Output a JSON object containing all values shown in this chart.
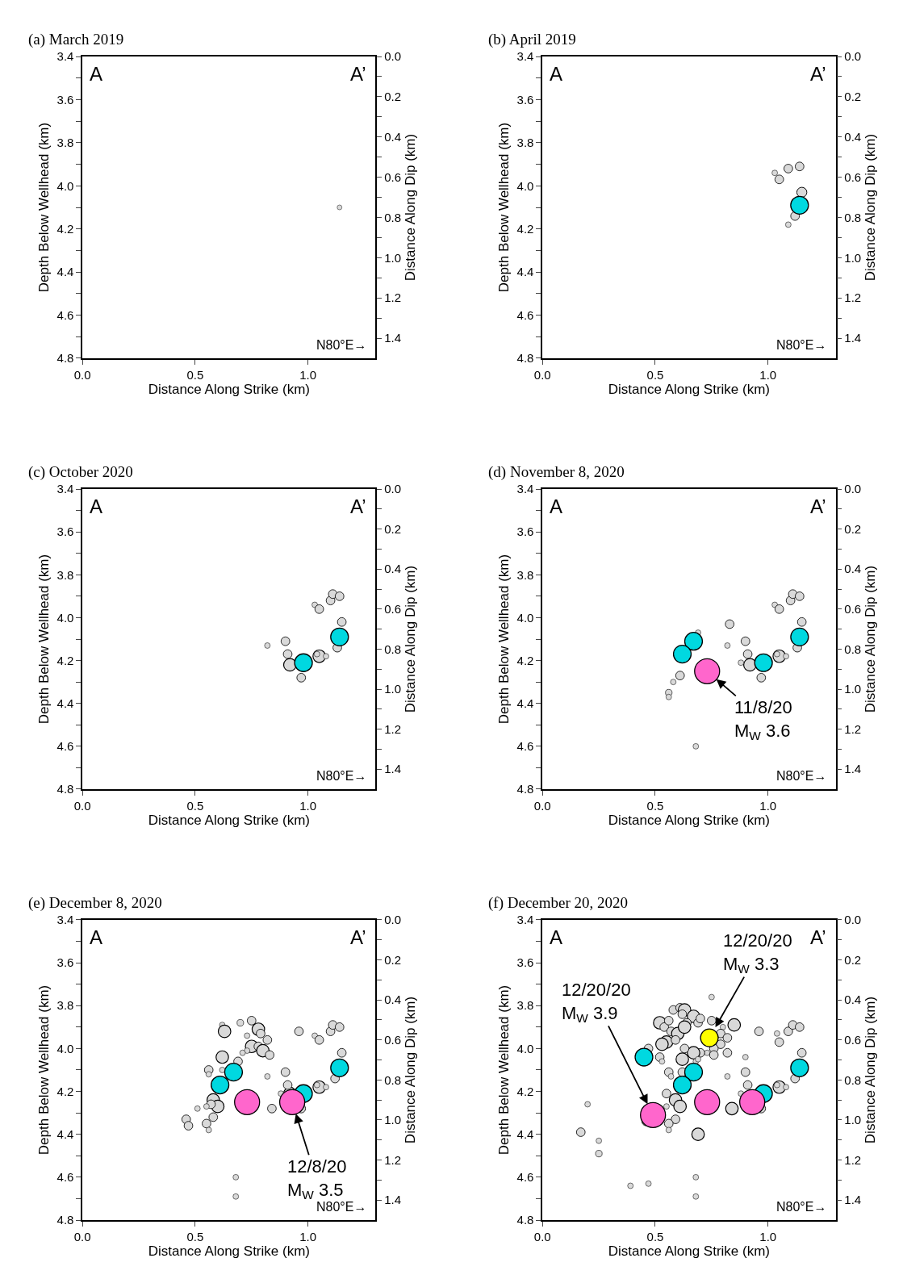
{
  "chart_data": [
    {
      "type": "bubble",
      "title": "(a) March 2019",
      "xlabel": "Distance Along Strike (km)",
      "ylabel": "Depth Below Wellhead (km)",
      "y2label": "Distance Along Dip (km)",
      "marker": "circle",
      "xlim": [
        0,
        1.3
      ],
      "xticks": [
        {
          "value": 0,
          "label": "0.0"
        },
        {
          "value": 0.5,
          "label": "0.5"
        },
        {
          "value": 1,
          "label": "1.0"
        }
      ],
      "ylim": [
        4.8,
        3.4
      ],
      "yticks": [
        {
          "value": 3.4,
          "label": "3.4"
        },
        {
          "value": 3.5,
          "label": null
        },
        {
          "value": 3.6,
          "label": "3.6"
        },
        {
          "value": 3.7,
          "label": null
        },
        {
          "value": 3.8,
          "label": "3.8"
        },
        {
          "value": 3.9,
          "label": null
        },
        {
          "value": 4.0,
          "label": "4.0"
        },
        {
          "value": 4.1,
          "label": null
        },
        {
          "value": 4.2,
          "label": "4.2"
        },
        {
          "value": 4.3,
          "label": null
        },
        {
          "value": 4.4,
          "label": "4.4"
        },
        {
          "value": 4.5,
          "label": null
        },
        {
          "value": 4.6,
          "label": "4.6"
        },
        {
          "value": 4.7,
          "label": null
        },
        {
          "value": 4.8,
          "label": "4.8"
        }
      ],
      "y2lim": [
        1.5,
        0
      ],
      "y2ticks": [
        {
          "value": 0,
          "label": "0.0"
        },
        {
          "value": 0.1,
          "label": null
        },
        {
          "value": 0.2,
          "label": "0.2"
        },
        {
          "value": 0.3,
          "label": null
        },
        {
          "value": 0.4,
          "label": "0.4"
        },
        {
          "value": 0.5,
          "label": null
        },
        {
          "value": 0.6,
          "label": "0.6"
        },
        {
          "value": 0.7,
          "label": null
        },
        {
          "value": 0.8,
          "label": "0.8"
        },
        {
          "value": 0.9,
          "label": null
        },
        {
          "value": 1.0,
          "label": "1.0"
        },
        {
          "value": 1.1,
          "label": null
        },
        {
          "value": 1.2,
          "label": "1.2"
        },
        {
          "value": 1.3,
          "label": null
        },
        {
          "value": 1.4,
          "label": "1.4"
        }
      ],
      "annotations": [
        "A",
        "A’",
        "N80°E→"
      ],
      "series": [
        {
          "color": "#d9d9d9",
          "x": [
            1.14
          ],
          "values": [
            4.1
          ],
          "sizes": [
            1
          ]
        }
      ]
    },
    {
      "type": "bubble",
      "title": "(b) April 2019",
      "xlabel": "Distance Along Strike (km)",
      "ylabel": "Depth Below Wellhead (km)",
      "y2label": "Distance Along Dip (km)",
      "marker": "circle",
      "xlim": [
        0,
        1.3
      ],
      "xticks": [
        {
          "value": 0,
          "label": "0.0"
        },
        {
          "value": 0.5,
          "label": "0.5"
        },
        {
          "value": 1,
          "label": "1.0"
        }
      ],
      "ylim": [
        4.8,
        3.4
      ],
      "yticks": [
        {
          "value": 3.4,
          "label": "3.4"
        },
        {
          "value": 3.5,
          "label": null
        },
        {
          "value": 3.6,
          "label": "3.6"
        },
        {
          "value": 3.7,
          "label": null
        },
        {
          "value": 3.8,
          "label": "3.8"
        },
        {
          "value": 3.9,
          "label": null
        },
        {
          "value": 4.0,
          "label": "4.0"
        },
        {
          "value": 4.1,
          "label": null
        },
        {
          "value": 4.2,
          "label": "4.2"
        },
        {
          "value": 4.3,
          "label": null
        },
        {
          "value": 4.4,
          "label": "4.4"
        },
        {
          "value": 4.5,
          "label": null
        },
        {
          "value": 4.6,
          "label": "4.6"
        },
        {
          "value": 4.7,
          "label": null
        },
        {
          "value": 4.8,
          "label": "4.8"
        }
      ],
      "y2lim": [
        1.5,
        0
      ],
      "y2ticks": [
        {
          "value": 0,
          "label": "0.0"
        },
        {
          "value": 0.1,
          "label": null
        },
        {
          "value": 0.2,
          "label": "0.2"
        },
        {
          "value": 0.3,
          "label": null
        },
        {
          "value": 0.4,
          "label": "0.4"
        },
        {
          "value": 0.5,
          "label": null
        },
        {
          "value": 0.6,
          "label": "0.6"
        },
        {
          "value": 0.7,
          "label": null
        },
        {
          "value": 0.8,
          "label": "0.8"
        },
        {
          "value": 0.9,
          "label": null
        },
        {
          "value": 1.0,
          "label": "1.0"
        },
        {
          "value": 1.1,
          "label": null
        },
        {
          "value": 1.2,
          "label": "1.2"
        },
        {
          "value": 1.3,
          "label": null
        },
        {
          "value": 1.4,
          "label": "1.4"
        }
      ],
      "annotations": [
        "A",
        "A’",
        "N80°E→"
      ],
      "series": [
        {
          "color": "#d9d9d9",
          "x": [
            1.03,
            1.05,
            1.09,
            1.14,
            1.15,
            1.12,
            1.09
          ],
          "values": [
            3.94,
            3.97,
            3.92,
            3.91,
            4.03,
            4.14,
            4.18
          ],
          "sizes": [
            0.1,
            0.24,
            0.24,
            0.24,
            0.32,
            0.24,
            0.1
          ]
        },
        {
          "color": "#00d8e0",
          "x": [
            1.14
          ],
          "values": [
            4.09
          ],
          "sizes": [
            1
          ]
        }
      ]
    },
    {
      "type": "bubble",
      "title": "(c) October 2020",
      "xlabel": "Distance Along Strike (km)",
      "ylabel": "Depth Below Wellhead (km)",
      "y2label": "Distance Along Dip (km)",
      "marker": "circle",
      "xlim": [
        0,
        1.3
      ],
      "xticks": [
        {
          "value": 0,
          "label": "0.0"
        },
        {
          "value": 0.5,
          "label": "0.5"
        },
        {
          "value": 1,
          "label": "1.0"
        }
      ],
      "ylim": [
        4.8,
        3.4
      ],
      "yticks": [
        {
          "value": 3.4,
          "label": "3.4"
        },
        {
          "value": 3.5,
          "label": null
        },
        {
          "value": 3.6,
          "label": "3.6"
        },
        {
          "value": 3.7,
          "label": null
        },
        {
          "value": 3.8,
          "label": "3.8"
        },
        {
          "value": 3.9,
          "label": null
        },
        {
          "value": 4.0,
          "label": "4.0"
        },
        {
          "value": 4.1,
          "label": null
        },
        {
          "value": 4.2,
          "label": "4.2"
        },
        {
          "value": 4.3,
          "label": null
        },
        {
          "value": 4.4,
          "label": "4.4"
        },
        {
          "value": 4.5,
          "label": null
        },
        {
          "value": 4.6,
          "label": "4.6"
        },
        {
          "value": 4.7,
          "label": null
        },
        {
          "value": 4.8,
          "label": "4.8"
        }
      ],
      "y2lim": [
        1.5,
        0
      ],
      "y2ticks": [
        {
          "value": 0,
          "label": "0.0"
        },
        {
          "value": 0.1,
          "label": null
        },
        {
          "value": 0.2,
          "label": "0.2"
        },
        {
          "value": 0.3,
          "label": null
        },
        {
          "value": 0.4,
          "label": "0.4"
        },
        {
          "value": 0.5,
          "label": null
        },
        {
          "value": 0.6,
          "label": "0.6"
        },
        {
          "value": 0.7,
          "label": null
        },
        {
          "value": 0.8,
          "label": "0.8"
        },
        {
          "value": 0.9,
          "label": null
        },
        {
          "value": 1.0,
          "label": "1.0"
        },
        {
          "value": 1.1,
          "label": null
        },
        {
          "value": 1.2,
          "label": "1.2"
        },
        {
          "value": 1.3,
          "label": null
        },
        {
          "value": 1.4,
          "label": "1.4"
        }
      ],
      "annotations": [
        "A",
        "A’",
        "N80°E→"
      ],
      "series": [
        {
          "color": "#d9d9d9",
          "x": [
            1.03,
            1.05,
            1.1,
            1.11,
            1.14,
            1.15,
            1.13,
            1.05,
            1.04,
            1.08,
            0.97,
            0.92,
            0.91,
            0.9,
            0.82
          ],
          "values": [
            3.94,
            3.96,
            3.92,
            3.89,
            3.9,
            4.02,
            4.14,
            4.18,
            4.17,
            4.18,
            4.28,
            4.22,
            4.17,
            4.11,
            4.13
          ],
          "sizes": [
            0.1,
            0.24,
            0.24,
            0.24,
            0.24,
            0.24,
            0.24,
            0.5,
            0.1,
            0.1,
            0.24,
            0.5,
            0.24,
            0.24,
            0.1
          ]
        },
        {
          "color": "#00d8e0",
          "x": [
            1.14,
            0.98
          ],
          "values": [
            4.09,
            4.21
          ],
          "sizes": [
            1,
            1
          ]
        }
      ]
    },
    {
      "type": "bubble",
      "title": "(d) November 8, 2020",
      "xlabel": "Distance Along Strike (km)",
      "ylabel": "Depth Below Wellhead (km)",
      "y2label": "Distance Along Dip (km)",
      "marker": "circle",
      "xlim": [
        0,
        1.3
      ],
      "xticks": [
        {
          "value": 0,
          "label": "0.0"
        },
        {
          "value": 0.5,
          "label": "0.5"
        },
        {
          "value": 1,
          "label": "1.0"
        }
      ],
      "ylim": [
        4.8,
        3.4
      ],
      "yticks": [
        {
          "value": 3.4,
          "label": "3.4"
        },
        {
          "value": 3.5,
          "label": null
        },
        {
          "value": 3.6,
          "label": "3.6"
        },
        {
          "value": 3.7,
          "label": null
        },
        {
          "value": 3.8,
          "label": "3.8"
        },
        {
          "value": 3.9,
          "label": null
        },
        {
          "value": 4.0,
          "label": "4.0"
        },
        {
          "value": 4.1,
          "label": null
        },
        {
          "value": 4.2,
          "label": "4.2"
        },
        {
          "value": 4.3,
          "label": null
        },
        {
          "value": 4.4,
          "label": "4.4"
        },
        {
          "value": 4.5,
          "label": null
        },
        {
          "value": 4.6,
          "label": "4.6"
        },
        {
          "value": 4.7,
          "label": null
        },
        {
          "value": 4.8,
          "label": "4.8"
        }
      ],
      "y2lim": [
        1.5,
        0
      ],
      "y2ticks": [
        {
          "value": 0,
          "label": "0.0"
        },
        {
          "value": 0.1,
          "label": null
        },
        {
          "value": 0.2,
          "label": "0.2"
        },
        {
          "value": 0.3,
          "label": null
        },
        {
          "value": 0.4,
          "label": "0.4"
        },
        {
          "value": 0.5,
          "label": null
        },
        {
          "value": 0.6,
          "label": "0.6"
        },
        {
          "value": 0.7,
          "label": null
        },
        {
          "value": 0.8,
          "label": "0.8"
        },
        {
          "value": 0.9,
          "label": null
        },
        {
          "value": 1.0,
          "label": "1.0"
        },
        {
          "value": 1.1,
          "label": null
        },
        {
          "value": 1.2,
          "label": "1.2"
        },
        {
          "value": 1.3,
          "label": null
        },
        {
          "value": 1.4,
          "label": "1.4"
        }
      ],
      "annotations": [
        "A",
        "A’",
        "N80°E→",
        {
          "text": "11/8/20\nM$_{W}$ 3.6",
          "x": 0.73,
          "y": 4.25
        }
      ],
      "series": [
        {
          "color": "#d9d9d9",
          "x": [
            1.03,
            1.05,
            1.1,
            1.11,
            1.14,
            1.15,
            1.13,
            1.05,
            1.04,
            1.08,
            0.97,
            0.92,
            0.91,
            0.9,
            0.82,
            0.88,
            0.83,
            0.69,
            0.61,
            0.58,
            0.56,
            0.56,
            0.68
          ],
          "values": [
            3.94,
            3.96,
            3.92,
            3.89,
            3.9,
            4.02,
            4.14,
            4.18,
            4.17,
            4.18,
            4.28,
            4.22,
            4.17,
            4.11,
            4.13,
            4.21,
            4.03,
            4.07,
            4.27,
            4.3,
            4.35,
            4.37,
            4.6
          ],
          "sizes": [
            0.05,
            0.12,
            0.12,
            0.12,
            0.12,
            0.12,
            0.12,
            0.25,
            0.05,
            0.05,
            0.12,
            0.25,
            0.12,
            0.12,
            0.05,
            0.05,
            0.12,
            0.05,
            0.12,
            0.05,
            0.07,
            0.05,
            0.05
          ]
        },
        {
          "color": "#00d8e0",
          "x": [
            1.14,
            0.98,
            0.67,
            0.62
          ],
          "values": [
            4.09,
            4.21,
            4.11,
            4.17
          ],
          "sizes": [
            0.5,
            0.5,
            0.5,
            0.5
          ]
        },
        {
          "color": "#ff66cc",
          "x": [
            0.73
          ],
          "values": [
            4.25
          ],
          "sizes": [
            1
          ]
        }
      ]
    },
    {
      "type": "bubble",
      "title": "(e) December 8, 2020",
      "xlabel": "Distance Along Strike (km)",
      "ylabel": "Depth Below Wellhead (km)",
      "y2label": "Distance Along Dip (km)",
      "marker": "circle",
      "xlim": [
        0,
        1.3
      ],
      "xticks": [
        {
          "value": 0,
          "label": "0.0"
        },
        {
          "value": 0.5,
          "label": "0.5"
        },
        {
          "value": 1,
          "label": "1.0"
        }
      ],
      "ylim": [
        4.8,
        3.4
      ],
      "yticks": [
        {
          "value": 3.4,
          "label": "3.4"
        },
        {
          "value": 3.5,
          "label": null
        },
        {
          "value": 3.6,
          "label": "3.6"
        },
        {
          "value": 3.7,
          "label": null
        },
        {
          "value": 3.8,
          "label": "3.8"
        },
        {
          "value": 3.9,
          "label": null
        },
        {
          "value": 4.0,
          "label": "4.0"
        },
        {
          "value": 4.1,
          "label": null
        },
        {
          "value": 4.2,
          "label": "4.2"
        },
        {
          "value": 4.3,
          "label": null
        },
        {
          "value": 4.4,
          "label": "4.4"
        },
        {
          "value": 4.5,
          "label": null
        },
        {
          "value": 4.6,
          "label": "4.6"
        },
        {
          "value": 4.7,
          "label": null
        },
        {
          "value": 4.8,
          "label": "4.8"
        }
      ],
      "y2lim": [
        1.5,
        0
      ],
      "y2ticks": [
        {
          "value": 0,
          "label": "0.0"
        },
        {
          "value": 0.1,
          "label": null
        },
        {
          "value": 0.2,
          "label": "0.2"
        },
        {
          "value": 0.3,
          "label": null
        },
        {
          "value": 0.4,
          "label": "0.4"
        },
        {
          "value": 0.5,
          "label": null
        },
        {
          "value": 0.6,
          "label": "0.6"
        },
        {
          "value": 0.7,
          "label": null
        },
        {
          "value": 0.8,
          "label": "0.8"
        },
        {
          "value": 0.9,
          "label": null
        },
        {
          "value": 1.0,
          "label": "1.0"
        },
        {
          "value": 1.1,
          "label": null
        },
        {
          "value": 1.2,
          "label": "1.2"
        },
        {
          "value": 1.3,
          "label": null
        },
        {
          "value": 1.4,
          "label": "1.4"
        }
      ],
      "annotations": [
        "A",
        "A’",
        "N80°E→",
        {
          "text": "12/8/20\nM$_{W}$ 3.5",
          "x": 0.93,
          "y": 4.25
        }
      ],
      "series": [
        {
          "color": "#d9d9d9",
          "x": [
            0.62,
            0.63,
            0.7,
            0.75,
            0.73,
            0.78,
            0.79,
            0.82,
            0.75,
            0.78,
            0.8,
            0.83,
            0.73,
            0.71,
            0.69,
            0.62,
            0.62,
            0.56,
            0.56,
            0.58,
            0.6,
            0.57,
            0.51,
            0.55,
            0.58,
            0.55,
            0.56,
            0.46,
            0.47,
            0.82,
            0.84,
            0.96,
            1.03,
            1.05,
            1.1,
            1.11,
            1.14,
            1.15,
            1.12,
            1.05,
            1.04,
            1.08,
            0.97,
            0.92,
            0.91,
            0.9,
            0.88,
            0.68,
            0.68
          ],
          "values": [
            3.89,
            3.92,
            3.88,
            3.87,
            3.94,
            3.91,
            3.93,
            3.96,
            3.99,
            3.99,
            4.01,
            4.03,
            4.01,
            4.02,
            4.06,
            4.04,
            4.1,
            4.1,
            4.12,
            4.24,
            4.27,
            4.26,
            4.28,
            4.27,
            4.32,
            4.35,
            4.38,
            4.33,
            4.36,
            4.13,
            4.28,
            3.92,
            3.94,
            3.96,
            3.92,
            3.89,
            3.9,
            4.02,
            4.14,
            4.18,
            4.17,
            4.18,
            4.28,
            4.21,
            4.17,
            4.11,
            4.21,
            4.6,
            4.69
          ],
          "sizes": [
            0.05,
            0.25,
            0.07,
            0.12,
            0.05,
            0.25,
            0.12,
            0.12,
            0.25,
            0.12,
            0.25,
            0.12,
            0.05,
            0.05,
            0.12,
            0.25,
            0.05,
            0.12,
            0.05,
            0.25,
            0.25,
            0.12,
            0.05,
            0.05,
            0.12,
            0.12,
            0.05,
            0.12,
            0.12,
            0.05,
            0.12,
            0.12,
            0.05,
            0.12,
            0.12,
            0.12,
            0.12,
            0.12,
            0.12,
            0.25,
            0.05,
            0.05,
            0.12,
            0.25,
            0.12,
            0.12,
            0.05,
            0.05,
            0.05
          ]
        },
        {
          "color": "#00d8e0",
          "x": [
            0.67,
            0.61,
            1.14,
            0.98
          ],
          "values": [
            4.11,
            4.17,
            4.09,
            4.21
          ],
          "sizes": [
            0.5,
            0.5,
            0.5,
            0.5
          ]
        },
        {
          "color": "#ff66cc",
          "x": [
            0.73,
            0.93
          ],
          "values": [
            4.25,
            4.25
          ],
          "sizes": [
            1,
            1
          ]
        }
      ]
    },
    {
      "type": "bubble",
      "title": "(f) December 20, 2020",
      "xlabel": "Distance Along Strike (km)",
      "ylabel": "Depth Below Wellhead (km)",
      "y2label": "Distance Along Dip (km)",
      "marker": "circle",
      "xlim": [
        0,
        1.3
      ],
      "xticks": [
        {
          "value": 0,
          "label": "0.0"
        },
        {
          "value": 0.5,
          "label": "0.5"
        },
        {
          "value": 1,
          "label": "1.0"
        }
      ],
      "ylim": [
        4.8,
        3.4
      ],
      "yticks": [
        {
          "value": 3.4,
          "label": "3.4"
        },
        {
          "value": 3.5,
          "label": null
        },
        {
          "value": 3.6,
          "label": "3.6"
        },
        {
          "value": 3.7,
          "label": null
        },
        {
          "value": 3.8,
          "label": "3.8"
        },
        {
          "value": 3.9,
          "label": null
        },
        {
          "value": 4.0,
          "label": "4.0"
        },
        {
          "value": 4.1,
          "label": null
        },
        {
          "value": 4.2,
          "label": "4.2"
        },
        {
          "value": 4.3,
          "label": null
        },
        {
          "value": 4.4,
          "label": "4.4"
        },
        {
          "value": 4.5,
          "label": null
        },
        {
          "value": 4.6,
          "label": "4.6"
        },
        {
          "value": 4.7,
          "label": null
        },
        {
          "value": 4.8,
          "label": "4.8"
        }
      ],
      "y2lim": [
        1.5,
        0
      ],
      "y2ticks": [
        {
          "value": 0,
          "label": "0.0"
        },
        {
          "value": 0.1,
          "label": null
        },
        {
          "value": 0.2,
          "label": "0.2"
        },
        {
          "value": 0.3,
          "label": null
        },
        {
          "value": 0.4,
          "label": "0.4"
        },
        {
          "value": 0.5,
          "label": null
        },
        {
          "value": 0.6,
          "label": "0.6"
        },
        {
          "value": 0.7,
          "label": null
        },
        {
          "value": 0.8,
          "label": "0.8"
        },
        {
          "value": 0.9,
          "label": null
        },
        {
          "value": 1.0,
          "label": "1.0"
        },
        {
          "value": 1.1,
          "label": null
        },
        {
          "value": 1.2,
          "label": "1.2"
        },
        {
          "value": 1.3,
          "label": null
        },
        {
          "value": 1.4,
          "label": "1.4"
        }
      ],
      "annotations": [
        "A",
        "A’",
        "N80°E→",
        {
          "text": "12/20/20\nM$_{W}$ 3.3",
          "x": 0.74,
          "y": 3.95
        },
        {
          "text": "12/20/20\nM$_{W}$ 3.9",
          "x": 0.49,
          "y": 4.31
        }
      ],
      "series": [
        {
          "color": "#d9d9d9",
          "x": [
            0.2,
            0.17,
            0.25,
            0.25,
            0.39,
            0.47,
            0.69,
            0.84,
            0.59,
            0.61,
            0.55,
            0.59,
            0.56,
            0.56,
            0.46,
            0.55,
            0.75,
            0.58,
            0.61,
            0.63,
            0.62,
            0.67,
            0.64,
            0.52,
            0.54,
            0.57,
            0.6,
            0.63,
            0.69,
            0.7,
            0.75,
            0.8,
            0.79,
            0.82,
            0.79,
            0.82,
            0.76,
            0.73,
            0.7,
            0.67,
            0.62,
            0.63,
            0.55,
            0.53,
            0.52,
            0.53,
            0.47,
            0.68,
            0.56,
            0.57,
            0.62,
            0.69,
            0.76,
            0.59,
            0.56,
            0.85,
            0.96,
            1.04,
            1.05,
            1.09,
            1.11,
            1.14,
            1.15,
            1.12,
            1.05,
            1.04,
            1.08,
            0.97,
            0.91,
            0.9,
            0.9,
            0.88,
            0.82,
            0.68,
            0.68
          ],
          "values": [
            4.26,
            4.39,
            4.43,
            4.49,
            4.64,
            4.63,
            4.4,
            4.28,
            4.24,
            4.27,
            4.27,
            4.33,
            4.35,
            4.38,
            4.34,
            4.21,
            3.76,
            3.82,
            3.81,
            3.82,
            3.84,
            3.85,
            3.88,
            3.88,
            3.9,
            3.92,
            3.93,
            3.9,
            3.88,
            3.86,
            3.87,
            3.9,
            3.93,
            3.95,
            3.98,
            4.02,
            4.0,
            4.02,
            4.02,
            4.02,
            4.05,
            4.0,
            3.97,
            3.98,
            4.04,
            4.06,
            4.0,
            4.06,
            4.11,
            4.13,
            4.11,
            4.05,
            4.03,
            3.96,
            3.87,
            3.89,
            3.92,
            3.93,
            3.97,
            3.92,
            3.89,
            3.9,
            4.02,
            4.14,
            4.18,
            4.17,
            4.18,
            4.28,
            4.17,
            4.11,
            4.04,
            4.21,
            4.13,
            4.6,
            4.69
          ],
          "sizes": [
            0.05,
            0.12,
            0.05,
            0.07,
            0.05,
            0.05,
            0.25,
            0.25,
            0.25,
            0.25,
            0.05,
            0.12,
            0.12,
            0.05,
            0.12,
            0.12,
            0.05,
            0.12,
            0.12,
            0.25,
            0.12,
            0.25,
            0.12,
            0.25,
            0.12,
            0.12,
            0.25,
            0.25,
            0.12,
            0.12,
            0.12,
            0.05,
            0.12,
            0.12,
            0.12,
            0.12,
            0.12,
            0.05,
            0.12,
            0.25,
            0.25,
            0.12,
            0.25,
            0.25,
            0.12,
            0.05,
            0.12,
            0.05,
            0.12,
            0.05,
            0.12,
            0.05,
            0.12,
            0.12,
            0.12,
            0.25,
            0.12,
            0.05,
            0.12,
            0.12,
            0.12,
            0.12,
            0.12,
            0.12,
            0.25,
            0.05,
            0.05,
            0.12,
            0.12,
            0.12,
            0.05,
            0.05,
            0.05,
            0.05,
            0.05
          ]
        },
        {
          "color": "#00d8e0",
          "x": [
            0.45,
            0.67,
            0.62,
            1.14,
            0.98
          ],
          "values": [
            4.04,
            4.11,
            4.17,
            4.09,
            4.21
          ],
          "sizes": [
            0.5,
            0.5,
            0.5,
            0.5,
            0.5
          ]
        },
        {
          "color": "#ff66cc",
          "x": [
            0.49,
            0.73,
            0.93
          ],
          "values": [
            4.31,
            4.25,
            4.25
          ],
          "sizes": [
            1,
            1,
            1
          ]
        },
        {
          "color": "#ffff00",
          "x": [
            0.74
          ],
          "values": [
            3.95
          ],
          "sizes": [
            0.5
          ]
        }
      ]
    }
  ]
}
